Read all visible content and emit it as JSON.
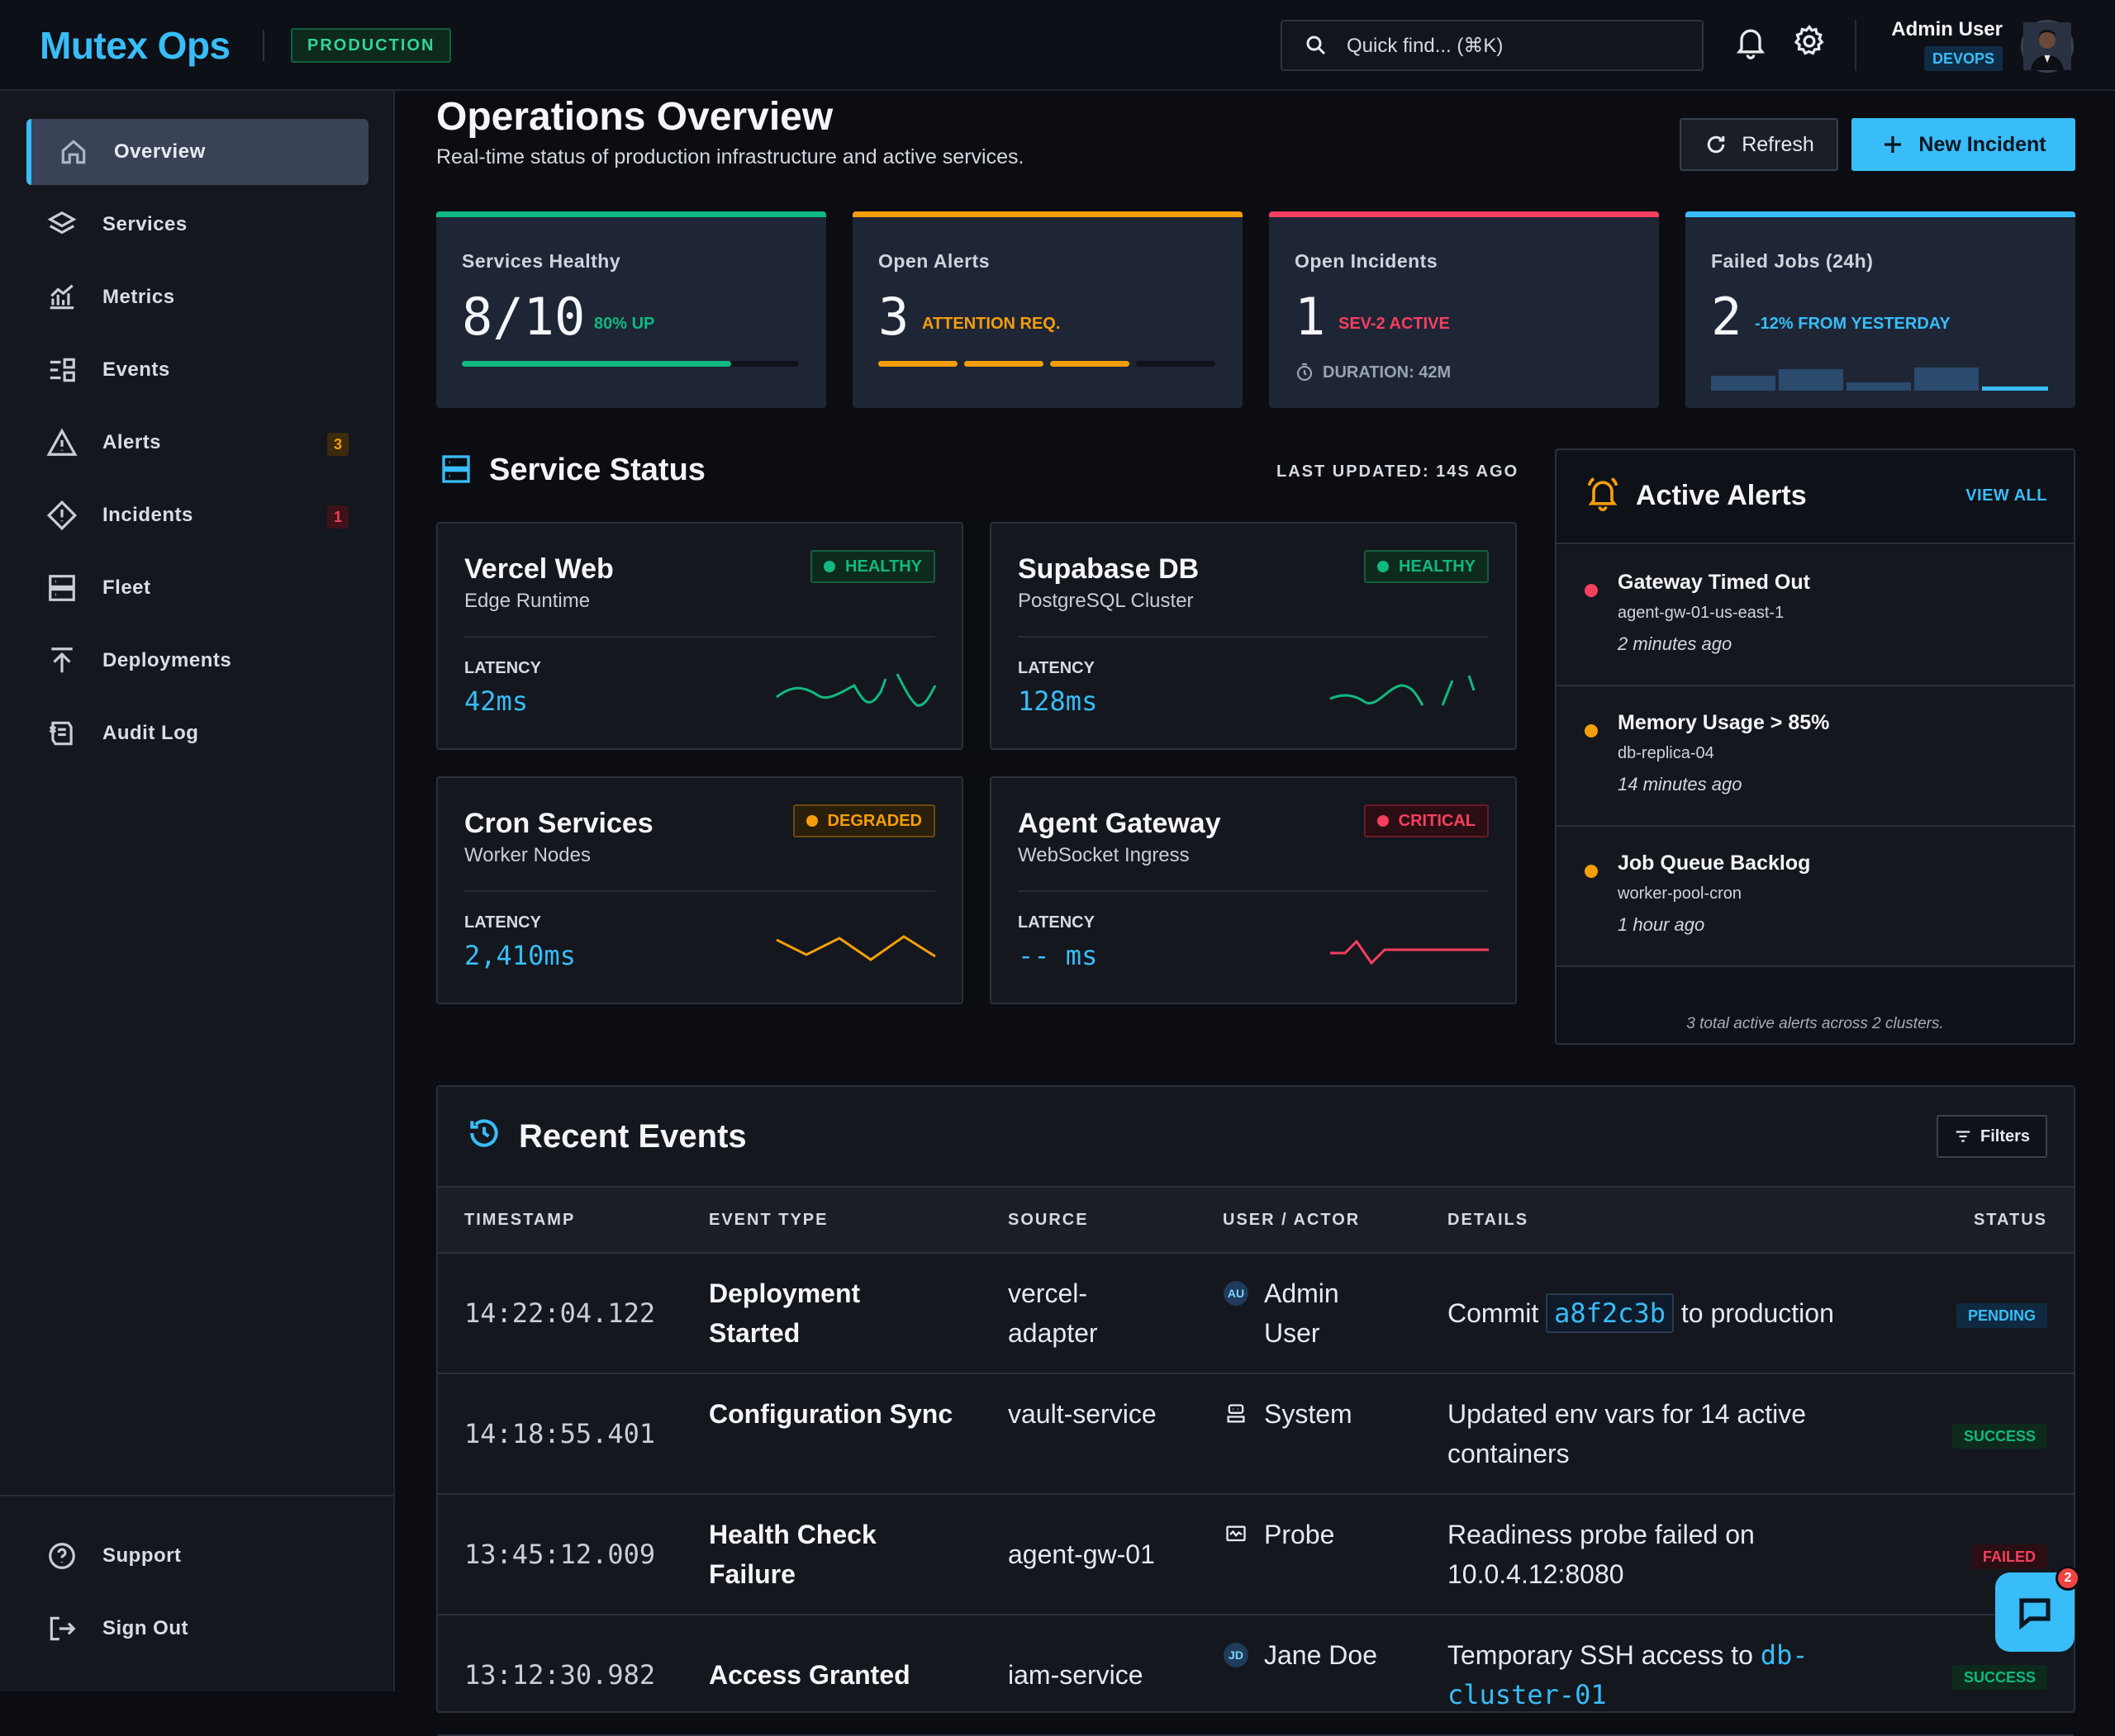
{
  "header": {
    "logo": "Mutex Ops",
    "env_badge": "PRODUCTION",
    "search_placeholder": "Quick find... (⌘K)",
    "user_name": "Admin User",
    "user_role": "DEVOPS"
  },
  "sidebar": {
    "items": [
      {
        "label": "Overview",
        "icon": "home-icon"
      },
      {
        "label": "Services",
        "icon": "layers-icon"
      },
      {
        "label": "Metrics",
        "icon": "chart-icon"
      },
      {
        "label": "Events",
        "icon": "events-icon"
      },
      {
        "label": "Alerts",
        "icon": "warning-icon",
        "count": "3"
      },
      {
        "label": "Incidents",
        "icon": "diamond-alert-icon",
        "count": "1"
      },
      {
        "label": "Fleet",
        "icon": "server-icon"
      },
      {
        "label": "Deployments",
        "icon": "upload-icon"
      },
      {
        "label": "Audit Log",
        "icon": "audit-icon"
      }
    ],
    "support": "Support",
    "sign_out": "Sign Out"
  },
  "main": {
    "title": "Operations Overview",
    "subtitle": "Real-time status of production infrastructure and active services.",
    "refresh_label": "Refresh",
    "new_incident_label": "New Incident"
  },
  "stats": {
    "healthy": {
      "label": "Services Healthy",
      "value": "8/10",
      "note": "80% UP",
      "progress": 0.8,
      "color": "#10b981"
    },
    "alerts": {
      "label": "Open Alerts",
      "value": "3",
      "note": "ATTENTION REQ.",
      "segments_filled": 3,
      "segments_total": 4,
      "color": "#f59e0b"
    },
    "incidents": {
      "label": "Open Incidents",
      "value": "1",
      "note": "SEV-2 ACTIVE",
      "extra": "DURATION: 42M",
      "color": "#f43f5e"
    },
    "jobs": {
      "label": "Failed Jobs (24h)",
      "value": "2",
      "note": "-12% FROM YESTERDAY",
      "color": "#38bdf8"
    }
  },
  "service_status": {
    "title": "Service Status",
    "last_updated": "LAST UPDATED: 14S AGO",
    "latency_label": "LATENCY",
    "services": [
      {
        "name": "Vercel Web",
        "desc": "Edge Runtime",
        "status": "HEALTHY",
        "latency": "42ms"
      },
      {
        "name": "Supabase DB",
        "desc": "PostgreSQL Cluster",
        "status": "HEALTHY",
        "latency": "128ms"
      },
      {
        "name": "Cron Services",
        "desc": "Worker Nodes",
        "status": "DEGRADED",
        "latency": "2,410ms"
      },
      {
        "name": "Agent Gateway",
        "desc": "WebSocket Ingress",
        "status": "CRITICAL",
        "latency": "-- ms"
      }
    ]
  },
  "active_alerts": {
    "title": "Active Alerts",
    "view_all": "VIEW ALL",
    "items": [
      {
        "title": "Gateway Timed Out",
        "source": "agent-gw-01-us-east-1",
        "time": "2 minutes ago",
        "color": "#f43f5e"
      },
      {
        "title": "Memory Usage > 85%",
        "source": "db-replica-04",
        "time": "14 minutes ago",
        "color": "#f59e0b"
      },
      {
        "title": "Job Queue Backlog",
        "source": "worker-pool-cron",
        "time": "1 hour ago",
        "color": "#f59e0b"
      }
    ],
    "footer": "3 total active alerts across 2 clusters."
  },
  "recent_events": {
    "title": "Recent Events",
    "filters": "Filters",
    "columns": [
      "TIMESTAMP",
      "EVENT TYPE",
      "SOURCE",
      "USER / ACTOR",
      "DETAILS",
      "STATUS"
    ],
    "rows": [
      {
        "ts": "14:22:04.122",
        "type": "Deployment Started",
        "source": "vercel-adapter",
        "actor_initials": "AU",
        "actor": "Admin User",
        "details_pre": "Commit",
        "commit": "a8f2c3b",
        "details_post": "to production",
        "status": "PENDING"
      },
      {
        "ts": "14:18:55.401",
        "type": "Configuration Sync",
        "source": "vault-service",
        "actor_icon": "system-icon",
        "actor": "System",
        "details": "Updated env vars for 14 active containers",
        "status": "SUCCESS"
      },
      {
        "ts": "13:45:12.009",
        "type": "Health Check Failure",
        "source": "agent-gw-01",
        "actor_icon": "probe-icon",
        "actor": "Probe",
        "details": "Readiness probe failed on 10.0.4.12:8080",
        "status": "FAILED"
      },
      {
        "ts": "13:12:30.982",
        "type": "Access Granted",
        "source": "iam-service",
        "actor_initials": "JD",
        "actor": "Jane Doe",
        "details_pre": "Temporary SSH access to",
        "details_link": "db-cluster-01",
        "status": "SUCCESS"
      }
    ]
  },
  "chat": {
    "badge": "2"
  }
}
